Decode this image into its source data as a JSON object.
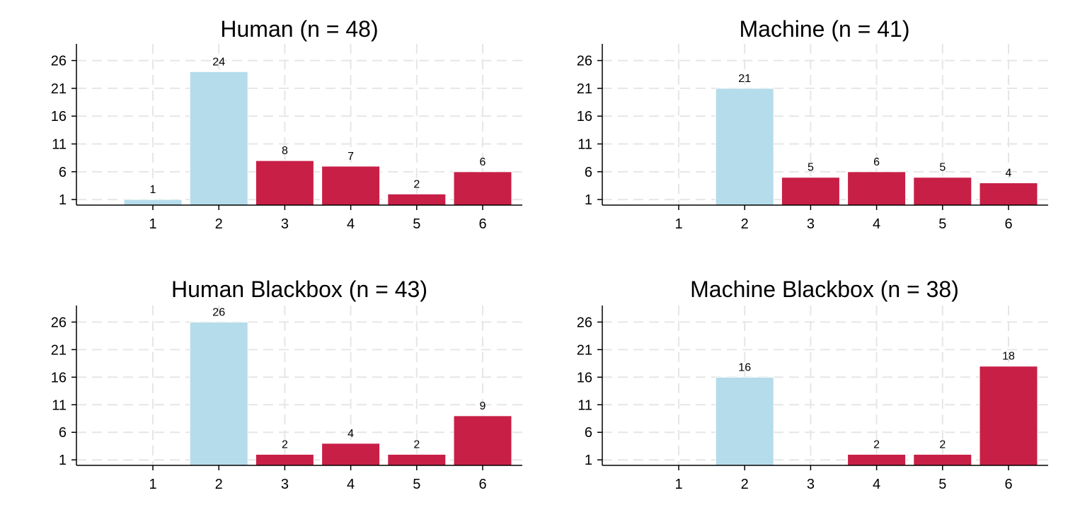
{
  "chart_data": [
    {
      "type": "bar",
      "title": "Human (n = 48)",
      "categories": [
        "1",
        "2",
        "3",
        "4",
        "5",
        "6"
      ],
      "values": [
        1,
        24,
        8,
        7,
        2,
        6
      ],
      "data_labels": [
        "1",
        "24",
        "8",
        "7",
        "2",
        "6"
      ],
      "bar_colors": [
        "#b5dceb",
        "#b5dceb",
        "#c81f47",
        "#c81f47",
        "#c81f47",
        "#c81f47"
      ],
      "yticks": [
        1,
        6,
        11,
        16,
        21,
        26
      ],
      "ytick_labels": [
        "1",
        "6",
        "11",
        "16",
        "21",
        "26"
      ],
      "ylim": [
        0,
        29
      ],
      "grid": true
    },
    {
      "type": "bar",
      "title": "Machine (n = 41)",
      "categories": [
        "1",
        "2",
        "3",
        "4",
        "5",
        "6"
      ],
      "values": [
        0,
        21,
        5,
        6,
        5,
        4
      ],
      "data_labels": [
        "",
        "21",
        "5",
        "6",
        "5",
        "4"
      ],
      "bar_colors": [
        "#b5dceb",
        "#b5dceb",
        "#c81f47",
        "#c81f47",
        "#c81f47",
        "#c81f47"
      ],
      "yticks": [
        1,
        6,
        11,
        16,
        21,
        26
      ],
      "ytick_labels": [
        "1",
        "6",
        "11",
        "16",
        "21",
        "26"
      ],
      "ylim": [
        0,
        29
      ],
      "grid": true
    },
    {
      "type": "bar",
      "title": "Human Blackbox (n = 43)",
      "categories": [
        "1",
        "2",
        "3",
        "4",
        "5",
        "6"
      ],
      "values": [
        0,
        26,
        2,
        4,
        2,
        9
      ],
      "data_labels": [
        "",
        "26",
        "2",
        "4",
        "2",
        "9"
      ],
      "bar_colors": [
        "#b5dceb",
        "#b5dceb",
        "#c81f47",
        "#c81f47",
        "#c81f47",
        "#c81f47"
      ],
      "yticks": [
        1,
        6,
        11,
        16,
        21,
        26
      ],
      "ytick_labels": [
        "1",
        "6",
        "11",
        "16",
        "21",
        "26"
      ],
      "ylim": [
        0,
        29
      ],
      "grid": true
    },
    {
      "type": "bar",
      "title": "Machine Blackbox (n = 38)",
      "categories": [
        "1",
        "2",
        "3",
        "4",
        "5",
        "6"
      ],
      "values": [
        0,
        16,
        0,
        2,
        2,
        18
      ],
      "data_labels": [
        "",
        "16",
        "",
        "2",
        "2",
        "18"
      ],
      "bar_colors": [
        "#b5dceb",
        "#b5dceb",
        "#c81f47",
        "#c81f47",
        "#c81f47",
        "#c81f47"
      ],
      "yticks": [
        1,
        6,
        11,
        16,
        21,
        26
      ],
      "ytick_labels": [
        "1",
        "6",
        "11",
        "16",
        "21",
        "26"
      ],
      "ylim": [
        0,
        29
      ],
      "grid": true
    }
  ]
}
